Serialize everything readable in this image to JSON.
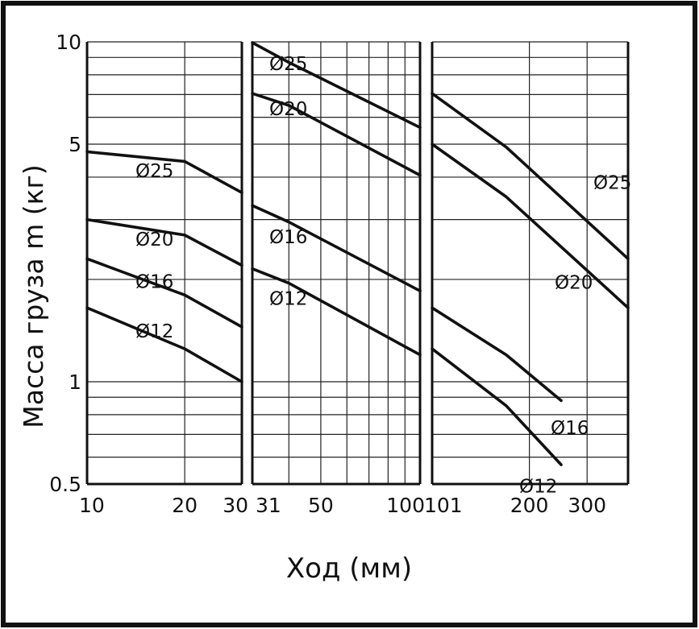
{
  "chart_data": {
    "type": "line",
    "xlabel": "Ход (мм)",
    "ylabel": "Масса груза m (кг)",
    "y_scale": "log",
    "ylim": [
      0.5,
      10
    ],
    "y_ticks": [
      "10",
      "5",
      "1",
      "0.5"
    ],
    "grid": true,
    "panels": [
      {
        "x_scale": "log",
        "xlim": [
          10,
          30
        ],
        "x_ticks": [
          "10",
          "20",
          "30"
        ],
        "series": [
          {
            "name": "Ø25",
            "points": [
              [
                10,
                4.75
              ],
              [
                20,
                4.45
              ],
              [
                30,
                3.6
              ]
            ]
          },
          {
            "name": "Ø20",
            "points": [
              [
                10,
                3.0
              ],
              [
                20,
                2.7
              ],
              [
                30,
                2.2
              ]
            ]
          },
          {
            "name": "Ø16",
            "points": [
              [
                10,
                2.3
              ],
              [
                20,
                1.8
              ],
              [
                30,
                1.45
              ]
            ]
          },
          {
            "name": "Ø12",
            "points": [
              [
                10,
                1.65
              ],
              [
                20,
                1.25
              ],
              [
                30,
                1.0
              ]
            ]
          }
        ]
      },
      {
        "x_scale": "log",
        "xlim": [
          31,
          100
        ],
        "x_ticks": [
          "31",
          "50",
          "100"
        ],
        "series": [
          {
            "name": "Ø25",
            "points": [
              [
                31,
                9.95
              ],
              [
                40,
                8.7
              ],
              [
                100,
                5.6
              ]
            ]
          },
          {
            "name": "Ø20",
            "points": [
              [
                31,
                7.05
              ],
              [
                40,
                6.5
              ],
              [
                100,
                4.05
              ]
            ]
          },
          {
            "name": "Ø16",
            "points": [
              [
                31,
                3.3
              ],
              [
                40,
                2.95
              ],
              [
                100,
                1.85
              ]
            ]
          },
          {
            "name": "Ø12",
            "points": [
              [
                31,
                2.15
              ],
              [
                40,
                1.95
              ],
              [
                100,
                1.2
              ]
            ]
          }
        ]
      },
      {
        "x_scale": "log",
        "xlim": [
          101,
          400
        ],
        "x_ticks": [
          "101",
          "200",
          "300"
        ],
        "series": [
          {
            "name": "Ø25",
            "points": [
              [
                101,
                7.05
              ],
              [
                170,
                4.9
              ],
              [
                400,
                2.3
              ]
            ]
          },
          {
            "name": "Ø20",
            "points": [
              [
                101,
                5.0
              ],
              [
                170,
                3.5
              ],
              [
                400,
                1.65
              ]
            ]
          },
          {
            "name": "Ø16",
            "points": [
              [
                101,
                1.65
              ],
              [
                170,
                1.2
              ],
              [
                250,
                0.88
              ]
            ]
          },
          {
            "name": "Ø12",
            "points": [
              [
                101,
                1.25
              ],
              [
                170,
                0.85
              ],
              [
                250,
                0.57
              ]
            ]
          }
        ]
      }
    ]
  }
}
